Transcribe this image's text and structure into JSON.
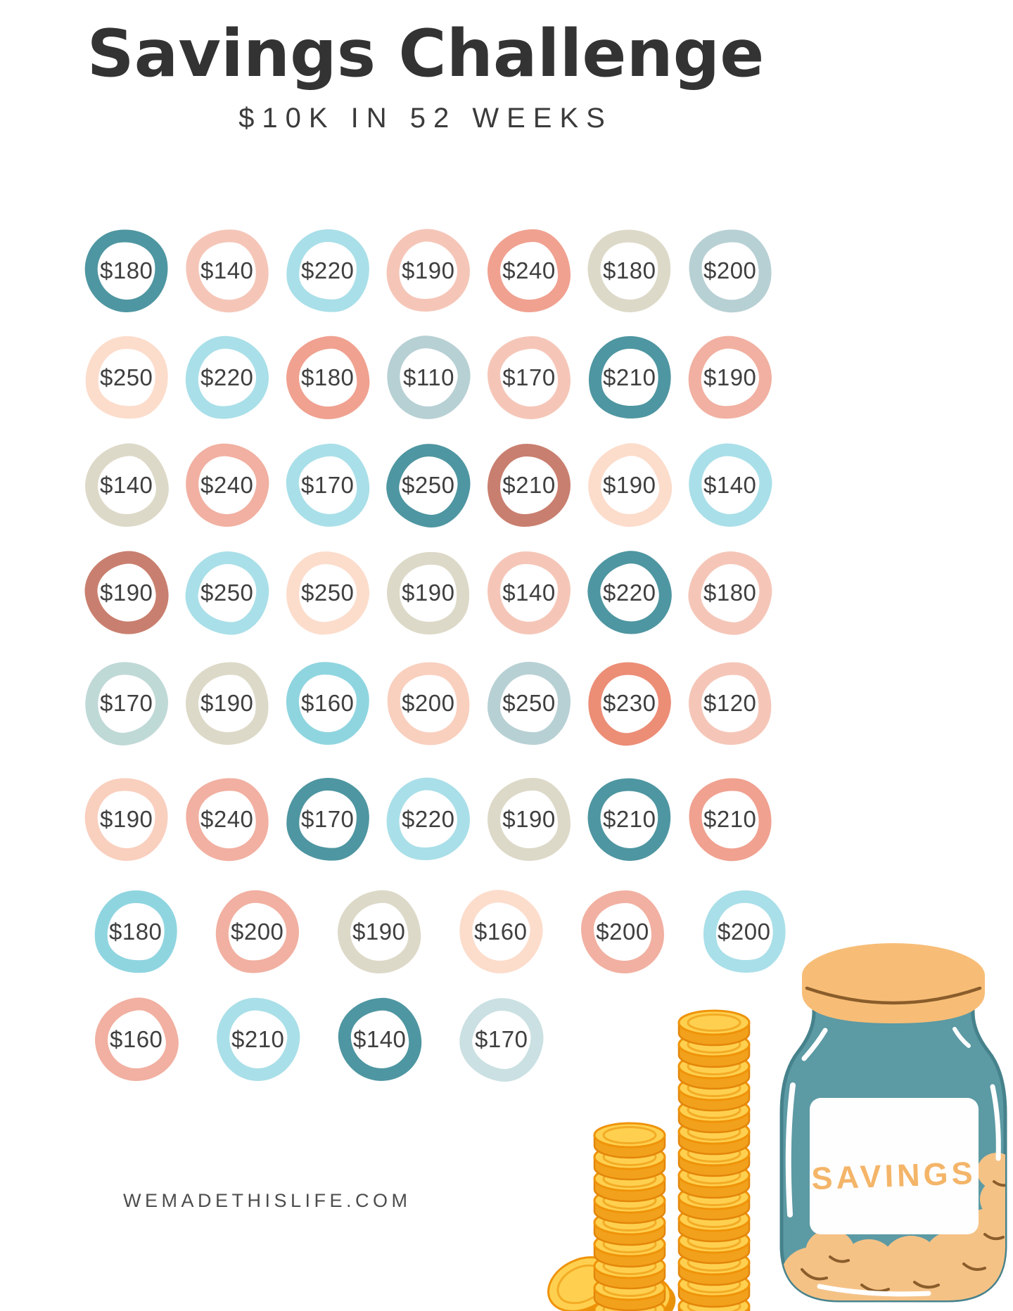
{
  "header": {
    "title": "Savings Challenge",
    "subtitle": "$10K IN 52 WEEKS"
  },
  "footer": {
    "watermark": "WEMADETHISLIFE.COM"
  },
  "palette": {
    "teal": "#4e96a1",
    "lightSalmon": "#f5c6b8",
    "salmonPink": "#f1b0a1",
    "salmon": "#f0a190",
    "salmonRed": "#ec8d76",
    "terracotta": "#c97f6f",
    "lightCyan": "#a9dfe8",
    "cyan": "#8fd5e0",
    "mutedBlue": "#b7d0d4",
    "mutedTeal": "#bfd9d6",
    "paleCyan": "#cbe0e2",
    "beige": "#ddd9c8",
    "lightPeach": "#fcdccb",
    "peach": "#f9cfbe"
  },
  "grid": {
    "rows": [
      {
        "cells": [
          {
            "amount": "$180",
            "color": "teal"
          },
          {
            "amount": "$140",
            "color": "lightSalmon"
          },
          {
            "amount": "$220",
            "color": "lightCyan"
          },
          {
            "amount": "$190",
            "color": "lightSalmon"
          },
          {
            "amount": "$240",
            "color": "salmon"
          },
          {
            "amount": "$180",
            "color": "beige"
          },
          {
            "amount": "$200",
            "color": "mutedBlue"
          }
        ]
      },
      {
        "cells": [
          {
            "amount": "$250",
            "color": "lightPeach"
          },
          {
            "amount": "$220",
            "color": "lightCyan"
          },
          {
            "amount": "$180",
            "color": "salmon"
          },
          {
            "amount": "$110",
            "color": "mutedBlue"
          },
          {
            "amount": "$170",
            "color": "lightSalmon"
          },
          {
            "amount": "$210",
            "color": "teal"
          },
          {
            "amount": "$190",
            "color": "salmonPink"
          }
        ]
      },
      {
        "cells": [
          {
            "amount": "$140",
            "color": "beige"
          },
          {
            "amount": "$240",
            "color": "salmonPink"
          },
          {
            "amount": "$170",
            "color": "lightCyan"
          },
          {
            "amount": "$250",
            "color": "teal"
          },
          {
            "amount": "$210",
            "color": "terracotta"
          },
          {
            "amount": "$190",
            "color": "lightPeach"
          },
          {
            "amount": "$140",
            "color": "lightCyan"
          }
        ]
      },
      {
        "cells": [
          {
            "amount": "$190",
            "color": "terracotta"
          },
          {
            "amount": "$250",
            "color": "lightCyan"
          },
          {
            "amount": "$250",
            "color": "lightPeach"
          },
          {
            "amount": "$190",
            "color": "beige"
          },
          {
            "amount": "$140",
            "color": "lightSalmon"
          },
          {
            "amount": "$220",
            "color": "teal"
          },
          {
            "amount": "$180",
            "color": "lightSalmon"
          }
        ]
      },
      {
        "cells": [
          {
            "amount": "$170",
            "color": "mutedTeal"
          },
          {
            "amount": "$190",
            "color": "beige"
          },
          {
            "amount": "$160",
            "color": "cyan"
          },
          {
            "amount": "$200",
            "color": "peach"
          },
          {
            "amount": "$250",
            "color": "mutedBlue"
          },
          {
            "amount": "$230",
            "color": "salmonRed"
          },
          {
            "amount": "$120",
            "color": "lightSalmon"
          }
        ]
      },
      {
        "cells": [
          {
            "amount": "$190",
            "color": "peach"
          },
          {
            "amount": "$240",
            "color": "salmonPink"
          },
          {
            "amount": "$170",
            "color": "teal"
          },
          {
            "amount": "$220",
            "color": "lightCyan"
          },
          {
            "amount": "$190",
            "color": "beige"
          },
          {
            "amount": "$210",
            "color": "teal"
          },
          {
            "amount": "$210",
            "color": "salmon"
          }
        ]
      },
      {
        "cells": [
          {
            "amount": "$180",
            "color": "cyan"
          },
          {
            "amount": "$200",
            "color": "salmonPink"
          },
          {
            "amount": "$190",
            "color": "beige"
          },
          {
            "amount": "$160",
            "color": "lightPeach"
          },
          {
            "amount": "$200",
            "color": "salmonPink"
          },
          {
            "amount": "$200",
            "color": "lightCyan"
          }
        ]
      },
      {
        "cells": [
          {
            "amount": "$160",
            "color": "salmonPink"
          },
          {
            "amount": "$210",
            "color": "lightCyan"
          },
          {
            "amount": "$140",
            "color": "teal"
          },
          {
            "amount": "$170",
            "color": "paleCyan"
          }
        ]
      }
    ]
  },
  "illustrations": {
    "jar_label": "SAVINGS",
    "jar_body_color": "#5c9aa4",
    "jar_outline_color": "#46828c",
    "jar_lid_color": "#f7bd77",
    "jar_label_text_color": "#f4b569",
    "jar_coins_color": "#f5c286",
    "coin_top_color": "#ffd04f",
    "coin_side_color": "#f2a11c",
    "coin_rim_color": "#ef9309"
  }
}
